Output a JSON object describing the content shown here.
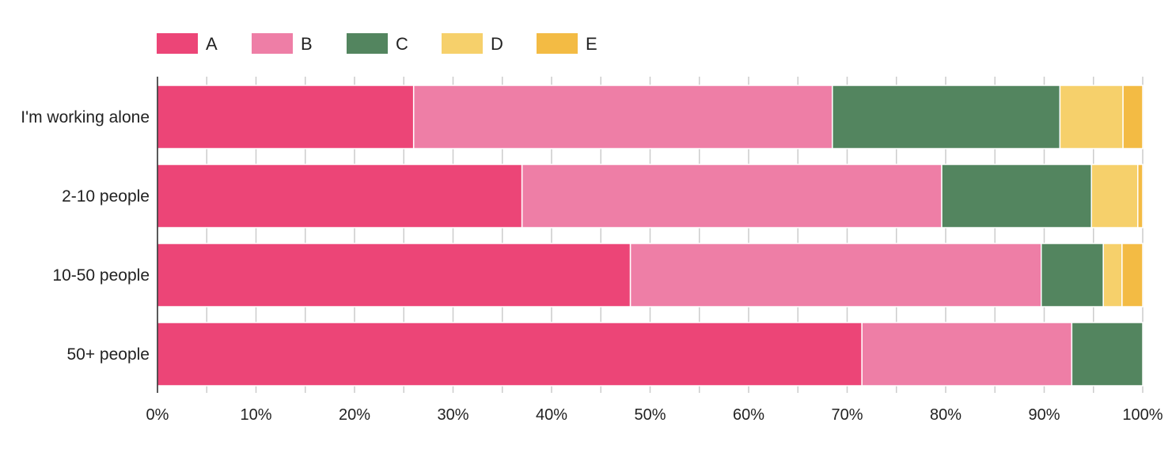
{
  "chart_data": {
    "type": "bar",
    "orientation": "horizontal",
    "stacked": true,
    "normalized": true,
    "categories": [
      "I'm working alone",
      "2-10 people",
      "10-50 people",
      "50+ people"
    ],
    "series": [
      {
        "name": "A",
        "color": "#ec4577",
        "values": [
          26.0,
          37.0,
          48.0,
          71.5
        ]
      },
      {
        "name": "B",
        "color": "#ee7ea6",
        "values": [
          42.5,
          42.6,
          41.7,
          21.3
        ]
      },
      {
        "name": "C",
        "color": "#53855f",
        "values": [
          23.1,
          15.2,
          6.3,
          7.2
        ]
      },
      {
        "name": "D",
        "color": "#f6d06b",
        "values": [
          6.4,
          4.7,
          1.9,
          0
        ]
      },
      {
        "name": "E",
        "color": "#f3bb44",
        "values": [
          2.0,
          0.5,
          2.1,
          0
        ]
      }
    ],
    "x_ticks": [
      "0%",
      "10%",
      "20%",
      "30%",
      "40%",
      "50%",
      "60%",
      "70%",
      "80%",
      "90%",
      "100%"
    ],
    "xlim": [
      0,
      100
    ],
    "grid": true,
    "legend_position": "top-left"
  }
}
